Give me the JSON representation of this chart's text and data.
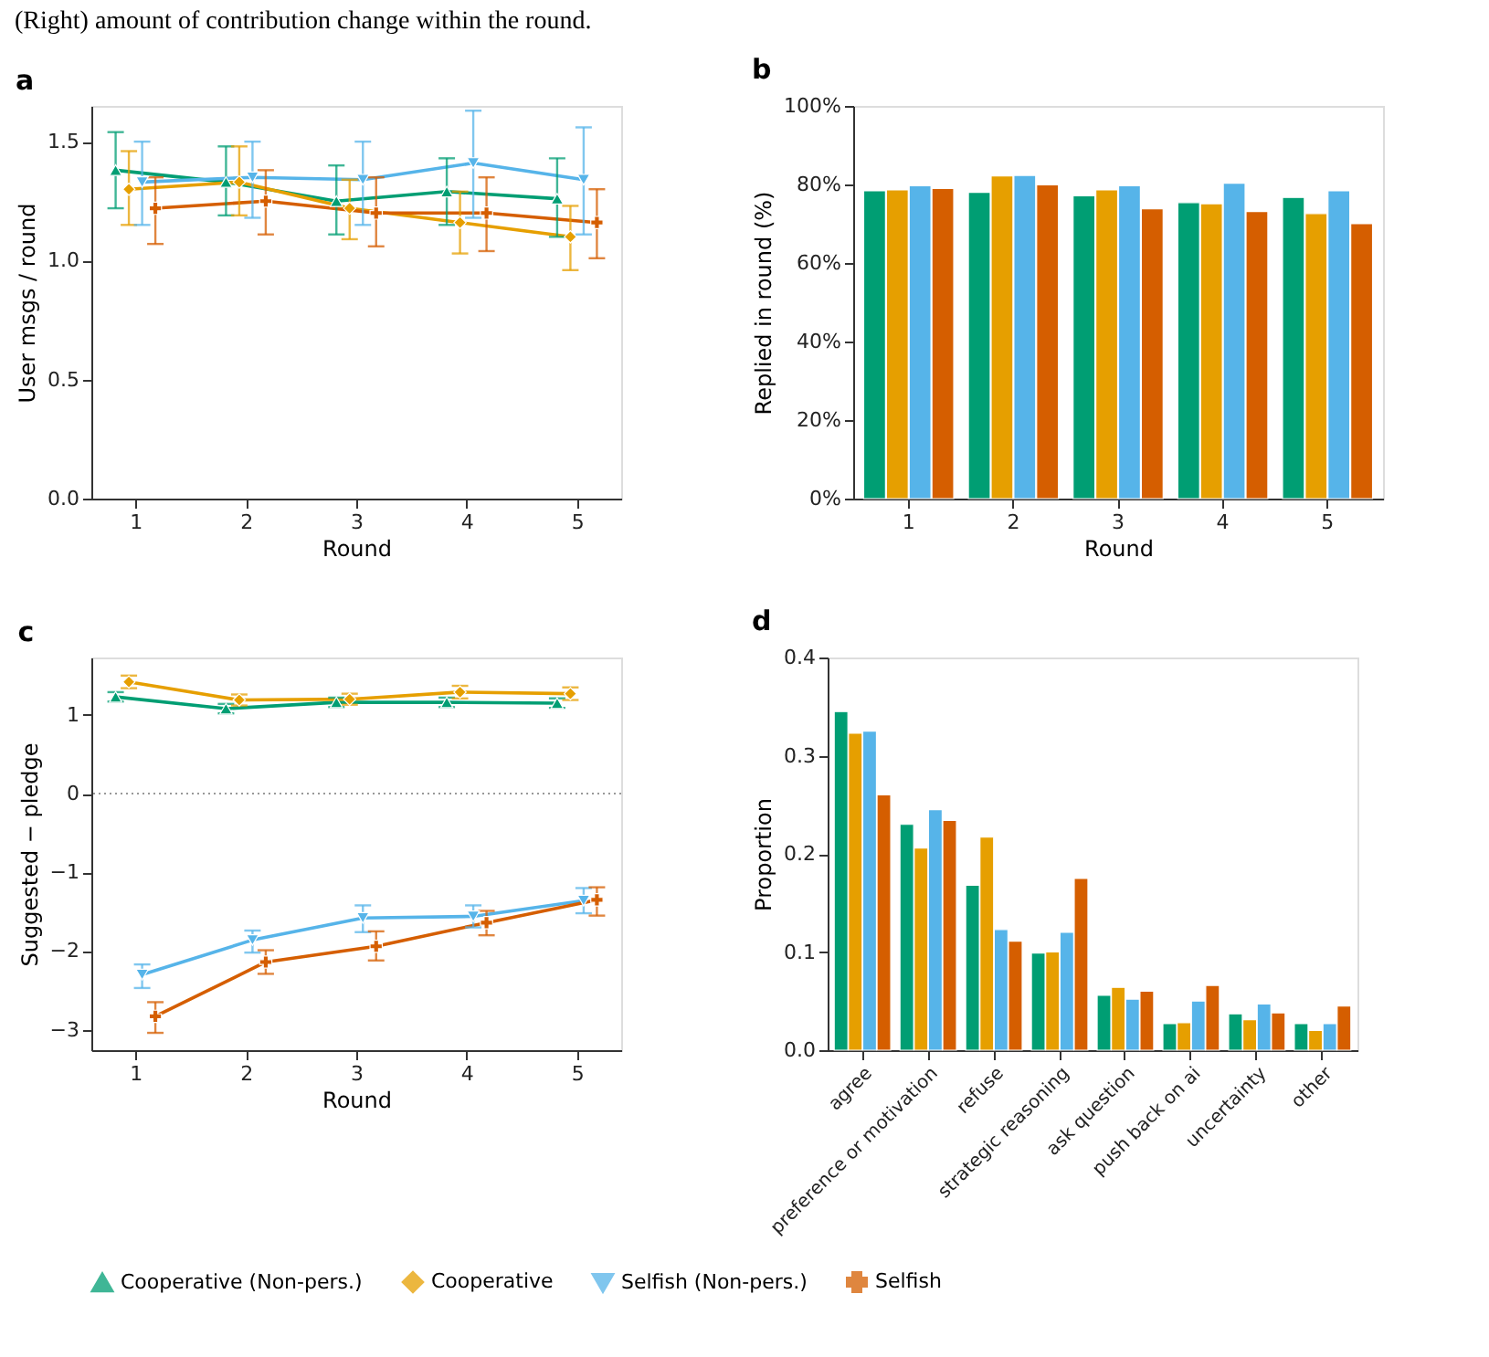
{
  "chart_data": [
    {
      "type": "line",
      "title": "a",
      "annotations": [
        "(Right) amount of contribution change within the round."
      ],
      "xlabel": "Round",
      "ylabel": "User msgs / round",
      "xlim": [
        0.6,
        5.4
      ],
      "xticks": [
        1,
        2,
        3,
        4,
        5
      ],
      "ylim": [
        0,
        1.65
      ],
      "yticks": [
        {
          "value": 0,
          "label": "0.0"
        },
        {
          "value": 0.5,
          "label": "0.5"
        },
        {
          "value": 1,
          "label": "1.0"
        },
        {
          "value": 1.5,
          "label": "1.5"
        }
      ],
      "grid": false,
      "legend": "bottom",
      "line_style": "solid",
      "series": [
        {
          "name": "Cooperative (Non-pers.)",
          "color": "#009e73",
          "marker": "triangle",
          "x": [
            0.82,
            1.82,
            2.82,
            3.82,
            4.82
          ],
          "values": [
            1.38,
            1.33,
            1.25,
            1.29,
            1.26
          ],
          "errors": [
            [
              1.22,
              1.54
            ],
            [
              1.19,
              1.48
            ],
            [
              1.11,
              1.4
            ],
            [
              1.15,
              1.43
            ],
            [
              1.1,
              1.43
            ]
          ]
        },
        {
          "name": "Cooperative",
          "color": "#e69f00",
          "marker": "diamond",
          "x": [
            0.94,
            1.94,
            2.94,
            3.94,
            4.94
          ],
          "values": [
            1.3,
            1.33,
            1.22,
            1.16,
            1.1
          ],
          "errors": [
            [
              1.15,
              1.46
            ],
            [
              1.19,
              1.48
            ],
            [
              1.09,
              1.34
            ],
            [
              1.03,
              1.29
            ],
            [
              0.96,
              1.23
            ]
          ]
        },
        {
          "name": "Selfish (Non-pers.)",
          "color": "#56b4e9",
          "marker": "triangle-down",
          "x": [
            1.06,
            2.06,
            3.06,
            4.06,
            5.06
          ],
          "values": [
            1.33,
            1.35,
            1.34,
            1.41,
            1.34
          ],
          "errors": [
            [
              1.15,
              1.5
            ],
            [
              1.18,
              1.5
            ],
            [
              1.15,
              1.5
            ],
            [
              1.18,
              1.63
            ],
            [
              1.11,
              1.56
            ]
          ]
        },
        {
          "name": "Selfish",
          "color": "#d55e00",
          "marker": "cross",
          "x": [
            1.18,
            2.18,
            3.18,
            4.18,
            5.18
          ],
          "values": [
            1.22,
            1.25,
            1.2,
            1.2,
            1.16
          ],
          "errors": [
            [
              1.07,
              1.35
            ],
            [
              1.11,
              1.38
            ],
            [
              1.06,
              1.35
            ],
            [
              1.04,
              1.35
            ],
            [
              1.01,
              1.3
            ]
          ]
        }
      ]
    },
    {
      "type": "bar",
      "title": "b",
      "xlabel": "Round",
      "ylabel": "Replied in round (%)",
      "categories": [
        "1",
        "2",
        "3",
        "4",
        "5"
      ],
      "ylim": [
        0,
        100
      ],
      "yticks": [
        {
          "value": 0,
          "label": "0%"
        },
        {
          "value": 20,
          "label": "20%"
        },
        {
          "value": 40,
          "label": "40%"
        },
        {
          "value": 60,
          "label": "60%"
        },
        {
          "value": 80,
          "label": "80%"
        },
        {
          "value": 100,
          "label": "100%"
        }
      ],
      "grid": false,
      "series": [
        {
          "name": "Cooperative (Non-pers.)",
          "color": "#009e73",
          "values": [
            78.4,
            78.0,
            77.1,
            75.4,
            76.7
          ]
        },
        {
          "name": "Cooperative",
          "color": "#e69f00",
          "values": [
            78.6,
            82.2,
            78.6,
            75.1,
            72.6
          ]
        },
        {
          "name": "Selfish (Non-pers.)",
          "color": "#56b4e9",
          "values": [
            79.7,
            82.3,
            79.7,
            80.3,
            78.4
          ]
        },
        {
          "name": "Selfish",
          "color": "#d55e00",
          "values": [
            79.0,
            79.9,
            73.8,
            73.1,
            70.0
          ]
        }
      ]
    },
    {
      "type": "line",
      "title": "c",
      "xlabel": "Round",
      "ylabel": "Suggested − pledge",
      "xlim": [
        0.6,
        5.4
      ],
      "xticks": [
        1,
        2,
        3,
        4,
        5
      ],
      "ylim": [
        -3.26,
        1.73
      ],
      "yticks": [
        {
          "value": -3,
          "label": "−3"
        },
        {
          "value": -2,
          "label": "−2"
        },
        {
          "value": -1,
          "label": "−1"
        },
        0,
        1
      ],
      "grid": false,
      "line_style": "solid",
      "ref_lines": [
        {
          "axis": "y",
          "value": 0,
          "color": "#999999",
          "line_style": "dotted"
        }
      ],
      "series": [
        {
          "name": "Cooperative (Non-pers.)",
          "color": "#009e73",
          "marker": "triangle",
          "x": [
            0.82,
            1.82,
            2.82,
            3.82,
            4.82
          ],
          "values": [
            1.23,
            1.08,
            1.16,
            1.16,
            1.15
          ],
          "errors": [
            [
              1.17,
              1.29
            ],
            [
              1.02,
              1.14
            ],
            [
              1.1,
              1.22
            ],
            [
              1.1,
              1.22
            ],
            [
              1.09,
              1.21
            ]
          ]
        },
        {
          "name": "Cooperative",
          "color": "#e69f00",
          "marker": "diamond",
          "x": [
            0.94,
            1.94,
            2.94,
            3.94,
            4.94
          ],
          "values": [
            1.42,
            1.19,
            1.2,
            1.29,
            1.27
          ],
          "errors": [
            [
              1.34,
              1.5
            ],
            [
              1.12,
              1.26
            ],
            [
              1.13,
              1.27
            ],
            [
              1.21,
              1.37
            ],
            [
              1.19,
              1.35
            ]
          ]
        },
        {
          "name": "Selfish (Non-pers.)",
          "color": "#56b4e9",
          "marker": "triangle-down",
          "x": [
            1.06,
            2.06,
            3.06,
            4.06,
            5.06
          ],
          "values": [
            -2.3,
            -1.86,
            -1.58,
            -1.56,
            -1.36
          ],
          "errors": [
            [
              -2.47,
              -2.17
            ],
            [
              -2.02,
              -1.74
            ],
            [
              -1.76,
              -1.42
            ],
            [
              -1.7,
              -1.42
            ],
            [
              -1.52,
              -1.2
            ]
          ]
        },
        {
          "name": "Selfish",
          "color": "#d55e00",
          "marker": "cross",
          "x": [
            1.18,
            2.18,
            3.18,
            4.18,
            5.18
          ],
          "values": [
            -2.83,
            -2.14,
            -1.94,
            -1.64,
            -1.35
          ],
          "errors": [
            [
              -3.04,
              -2.65
            ],
            [
              -2.29,
              -1.99
            ],
            [
              -2.12,
              -1.75
            ],
            [
              -1.8,
              -1.49
            ],
            [
              -1.55,
              -1.19
            ]
          ]
        }
      ]
    },
    {
      "type": "bar",
      "title": "d",
      "ylabel": "Proportion",
      "categories": [
        "agree",
        "preference or motivation",
        "refuse",
        "strategic reasoning",
        "ask question",
        "push back on ai",
        "uncertainty",
        "other"
      ],
      "ylim": [
        0,
        0.4
      ],
      "yticks": [
        {
          "value": 0,
          "label": "0.0"
        },
        0.1,
        0.2,
        0.3,
        0.4
      ],
      "grid": false,
      "series": [
        {
          "name": "Cooperative (Non-pers.)",
          "color": "#009e73",
          "values": [
            0.345,
            0.23,
            0.168,
            0.099,
            0.056,
            0.027,
            0.037,
            0.027
          ]
        },
        {
          "name": "Cooperative",
          "color": "#e69f00",
          "values": [
            0.323,
            0.206,
            0.217,
            0.1,
            0.064,
            0.028,
            0.031,
            0.02
          ]
        },
        {
          "name": "Selfish (Non-pers.)",
          "color": "#56b4e9",
          "values": [
            0.325,
            0.245,
            0.123,
            0.12,
            0.052,
            0.05,
            0.047,
            0.027
          ]
        },
        {
          "name": "Selfish",
          "color": "#d55e00",
          "values": [
            0.26,
            0.234,
            0.111,
            0.175,
            0.06,
            0.066,
            0.038,
            0.045
          ]
        }
      ]
    }
  ]
}
